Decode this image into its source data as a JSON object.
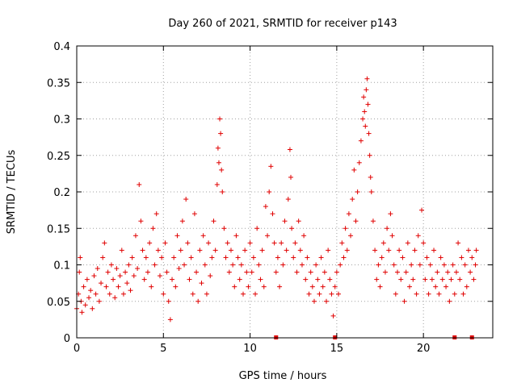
{
  "chart_data": {
    "type": "scatter",
    "title": "Day 260 of 2021, SRMTID for receiver p143",
    "xlabel": "GPS time / hours",
    "ylabel": "SRMTID / TECUs",
    "xlim": [
      0,
      24
    ],
    "ylim": [
      0,
      0.4
    ],
    "xticks": [
      0,
      5,
      10,
      15,
      20
    ],
    "xtick_labels": [
      "0",
      "5",
      "10",
      "15",
      "20"
    ],
    "yticks": [
      0,
      0.05,
      0.1,
      0.15,
      0.2,
      0.25,
      0.3,
      0.35,
      0.4
    ],
    "ytick_labels": [
      "0",
      "0.05",
      "0.1",
      "0.15",
      "0.2",
      "0.25",
      "0.3",
      "0.35",
      "0.4"
    ],
    "grid": true,
    "marker": "+",
    "color": "#e00000",
    "gap_markers_hours": [
      11.5,
      14.9,
      21.8,
      22.8
    ],
    "series": [
      {
        "name": "SRMTID",
        "points": [
          [
            0.0,
            0.04
          ],
          [
            0.1,
            0.06
          ],
          [
            0.15,
            0.09
          ],
          [
            0.2,
            0.11
          ],
          [
            0.25,
            0.05
          ],
          [
            0.3,
            0.035
          ],
          [
            0.4,
            0.07
          ],
          [
            0.5,
            0.045
          ],
          [
            0.6,
            0.08
          ],
          [
            0.7,
            0.055
          ],
          [
            0.8,
            0.065
          ],
          [
            0.9,
            0.04
          ],
          [
            1.0,
            0.085
          ],
          [
            1.1,
            0.06
          ],
          [
            1.2,
            0.095
          ],
          [
            1.3,
            0.05
          ],
          [
            1.4,
            0.075
          ],
          [
            1.5,
            0.11
          ],
          [
            1.6,
            0.13
          ],
          [
            1.7,
            0.07
          ],
          [
            1.8,
            0.09
          ],
          [
            1.9,
            0.06
          ],
          [
            2.0,
            0.1
          ],
          [
            2.1,
            0.08
          ],
          [
            2.2,
            0.055
          ],
          [
            2.3,
            0.095
          ],
          [
            2.4,
            0.07
          ],
          [
            2.5,
            0.085
          ],
          [
            2.6,
            0.12
          ],
          [
            2.7,
            0.06
          ],
          [
            2.8,
            0.09
          ],
          [
            2.9,
            0.075
          ],
          [
            3.0,
            0.1
          ],
          [
            3.1,
            0.065
          ],
          [
            3.2,
            0.11
          ],
          [
            3.3,
            0.085
          ],
          [
            3.4,
            0.14
          ],
          [
            3.5,
            0.095
          ],
          [
            3.6,
            0.21
          ],
          [
            3.7,
            0.16
          ],
          [
            3.8,
            0.12
          ],
          [
            3.9,
            0.08
          ],
          [
            4.0,
            0.11
          ],
          [
            4.1,
            0.09
          ],
          [
            4.2,
            0.13
          ],
          [
            4.3,
            0.07
          ],
          [
            4.4,
            0.15
          ],
          [
            4.5,
            0.1
          ],
          [
            4.6,
            0.17
          ],
          [
            4.7,
            0.12
          ],
          [
            4.8,
            0.085
          ],
          [
            4.9,
            0.11
          ],
          [
            5.0,
            0.06
          ],
          [
            5.1,
            0.13
          ],
          [
            5.2,
            0.09
          ],
          [
            5.3,
            0.05
          ],
          [
            5.4,
            0.025
          ],
          [
            5.5,
            0.08
          ],
          [
            5.6,
            0.11
          ],
          [
            5.7,
            0.07
          ],
          [
            5.8,
            0.14
          ],
          [
            5.9,
            0.095
          ],
          [
            6.0,
            0.12
          ],
          [
            6.1,
            0.16
          ],
          [
            6.2,
            0.1
          ],
          [
            6.3,
            0.19
          ],
          [
            6.4,
            0.13
          ],
          [
            6.5,
            0.08
          ],
          [
            6.6,
            0.11
          ],
          [
            6.7,
            0.06
          ],
          [
            6.8,
            0.17
          ],
          [
            6.9,
            0.09
          ],
          [
            7.0,
            0.05
          ],
          [
            7.1,
            0.12
          ],
          [
            7.2,
            0.075
          ],
          [
            7.3,
            0.14
          ],
          [
            7.4,
            0.1
          ],
          [
            7.5,
            0.06
          ],
          [
            7.6,
            0.13
          ],
          [
            7.7,
            0.085
          ],
          [
            7.8,
            0.11
          ],
          [
            7.9,
            0.16
          ],
          [
            8.0,
            0.12
          ],
          [
            8.1,
            0.21
          ],
          [
            8.15,
            0.26
          ],
          [
            8.2,
            0.24
          ],
          [
            8.25,
            0.3
          ],
          [
            8.3,
            0.28
          ],
          [
            8.35,
            0.23
          ],
          [
            8.4,
            0.2
          ],
          [
            8.5,
            0.15
          ],
          [
            8.6,
            0.11
          ],
          [
            8.7,
            0.13
          ],
          [
            8.8,
            0.09
          ],
          [
            8.9,
            0.12
          ],
          [
            9.0,
            0.1
          ],
          [
            9.1,
            0.07
          ],
          [
            9.2,
            0.14
          ],
          [
            9.3,
            0.11
          ],
          [
            9.4,
            0.08
          ],
          [
            9.5,
            0.1
          ],
          [
            9.6,
            0.06
          ],
          [
            9.7,
            0.12
          ],
          [
            9.8,
            0.09
          ],
          [
            9.9,
            0.07
          ],
          [
            10.0,
            0.13
          ],
          [
            10.1,
            0.09
          ],
          [
            10.2,
            0.11
          ],
          [
            10.3,
            0.06
          ],
          [
            10.4,
            0.15
          ],
          [
            10.5,
            0.1
          ],
          [
            10.6,
            0.08
          ],
          [
            10.7,
            0.12
          ],
          [
            10.8,
            0.07
          ],
          [
            10.9,
            0.18
          ],
          [
            11.0,
            0.14
          ],
          [
            11.1,
            0.2
          ],
          [
            11.2,
            0.235
          ],
          [
            11.3,
            0.17
          ],
          [
            11.4,
            0.13
          ],
          [
            11.5,
            0.09
          ],
          [
            11.6,
            0.11
          ],
          [
            11.7,
            0.07
          ],
          [
            11.8,
            0.13
          ],
          [
            11.9,
            0.1
          ],
          [
            12.0,
            0.16
          ],
          [
            12.1,
            0.12
          ],
          [
            12.2,
            0.19
          ],
          [
            12.3,
            0.258
          ],
          [
            12.35,
            0.22
          ],
          [
            12.4,
            0.15
          ],
          [
            12.5,
            0.11
          ],
          [
            12.6,
            0.13
          ],
          [
            12.7,
            0.09
          ],
          [
            12.8,
            0.16
          ],
          [
            12.9,
            0.12
          ],
          [
            13.0,
            0.1
          ],
          [
            13.1,
            0.14
          ],
          [
            13.2,
            0.08
          ],
          [
            13.3,
            0.11
          ],
          [
            13.4,
            0.06
          ],
          [
            13.5,
            0.09
          ],
          [
            13.6,
            0.07
          ],
          [
            13.7,
            0.05
          ],
          [
            13.8,
            0.1
          ],
          [
            13.9,
            0.08
          ],
          [
            14.0,
            0.06
          ],
          [
            14.1,
            0.11
          ],
          [
            14.2,
            0.07
          ],
          [
            14.3,
            0.09
          ],
          [
            14.4,
            0.05
          ],
          [
            14.5,
            0.12
          ],
          [
            14.6,
            0.08
          ],
          [
            14.7,
            0.06
          ],
          [
            14.8,
            0.03
          ],
          [
            14.9,
            0.07
          ],
          [
            15.0,
            0.09
          ],
          [
            15.1,
            0.06
          ],
          [
            15.2,
            0.1
          ],
          [
            15.3,
            0.13
          ],
          [
            15.4,
            0.11
          ],
          [
            15.5,
            0.15
          ],
          [
            15.6,
            0.12
          ],
          [
            15.7,
            0.17
          ],
          [
            15.8,
            0.14
          ],
          [
            15.9,
            0.19
          ],
          [
            16.0,
            0.23
          ],
          [
            16.1,
            0.16
          ],
          [
            16.2,
            0.2
          ],
          [
            16.3,
            0.24
          ],
          [
            16.4,
            0.27
          ],
          [
            16.5,
            0.3
          ],
          [
            16.55,
            0.33
          ],
          [
            16.6,
            0.31
          ],
          [
            16.65,
            0.29
          ],
          [
            16.7,
            0.34
          ],
          [
            16.75,
            0.355
          ],
          [
            16.8,
            0.32
          ],
          [
            16.85,
            0.28
          ],
          [
            16.9,
            0.25
          ],
          [
            16.95,
            0.22
          ],
          [
            17.0,
            0.2
          ],
          [
            17.1,
            0.16
          ],
          [
            17.2,
            0.12
          ],
          [
            17.3,
            0.08
          ],
          [
            17.4,
            0.1
          ],
          [
            17.5,
            0.07
          ],
          [
            17.6,
            0.11
          ],
          [
            17.7,
            0.13
          ],
          [
            17.8,
            0.09
          ],
          [
            17.9,
            0.15
          ],
          [
            18.0,
            0.12
          ],
          [
            18.1,
            0.17
          ],
          [
            18.2,
            0.14
          ],
          [
            18.3,
            0.1
          ],
          [
            18.4,
            0.06
          ],
          [
            18.5,
            0.09
          ],
          [
            18.6,
            0.12
          ],
          [
            18.7,
            0.08
          ],
          [
            18.8,
            0.11
          ],
          [
            18.9,
            0.05
          ],
          [
            19.0,
            0.09
          ],
          [
            19.1,
            0.13
          ],
          [
            19.2,
            0.07
          ],
          [
            19.3,
            0.1
          ],
          [
            19.4,
            0.08
          ],
          [
            19.5,
            0.12
          ],
          [
            19.6,
            0.06
          ],
          [
            19.7,
            0.14
          ],
          [
            19.8,
            0.1
          ],
          [
            19.9,
            0.175
          ],
          [
            20.0,
            0.13
          ],
          [
            20.1,
            0.08
          ],
          [
            20.2,
            0.11
          ],
          [
            20.3,
            0.06
          ],
          [
            20.4,
            0.1
          ],
          [
            20.5,
            0.08
          ],
          [
            20.6,
            0.12
          ],
          [
            20.7,
            0.07
          ],
          [
            20.8,
            0.09
          ],
          [
            20.9,
            0.06
          ],
          [
            21.0,
            0.11
          ],
          [
            21.1,
            0.08
          ],
          [
            21.2,
            0.1
          ],
          [
            21.3,
            0.07
          ],
          [
            21.4,
            0.09
          ],
          [
            21.5,
            0.05
          ],
          [
            21.6,
            0.08
          ],
          [
            21.7,
            0.1
          ],
          [
            21.8,
            0.06
          ],
          [
            21.9,
            0.09
          ],
          [
            22.0,
            0.13
          ],
          [
            22.1,
            0.08
          ],
          [
            22.2,
            0.11
          ],
          [
            22.3,
            0.06
          ],
          [
            22.4,
            0.1
          ],
          [
            22.5,
            0.07
          ],
          [
            22.6,
            0.12
          ],
          [
            22.7,
            0.09
          ],
          [
            22.8,
            0.11
          ],
          [
            22.9,
            0.08
          ],
          [
            23.0,
            0.1
          ],
          [
            23.05,
            0.12
          ]
        ]
      }
    ]
  }
}
